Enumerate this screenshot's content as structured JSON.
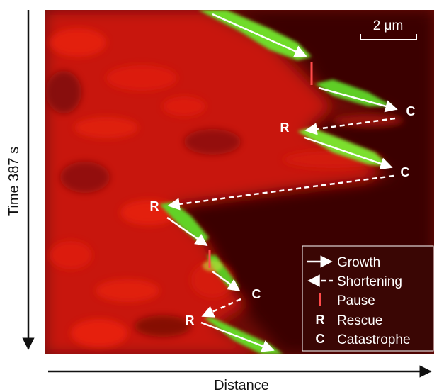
{
  "figure": {
    "scale_bar_label": "2 μm",
    "y_axis_label": "Time 387 s",
    "x_axis_label": "Distance"
  },
  "events": {
    "c1": "C",
    "r1": "R",
    "c2": "C",
    "r2": "R",
    "c3": "C",
    "r3": "R"
  },
  "legend": {
    "growth": "Growth",
    "shortening": "Shortening",
    "pause": "Pause",
    "rescue_key": "R",
    "rescue": "Rescue",
    "catastrophe_key": "C",
    "catastrophe": "Catastrophe"
  },
  "colors": {
    "background_red": "#c21208",
    "dark_red": "#5a0a05",
    "microtubule_green": "#6fdc2a",
    "pause_mark": "#ff4a4a",
    "legend_bg": "#3a0604"
  }
}
